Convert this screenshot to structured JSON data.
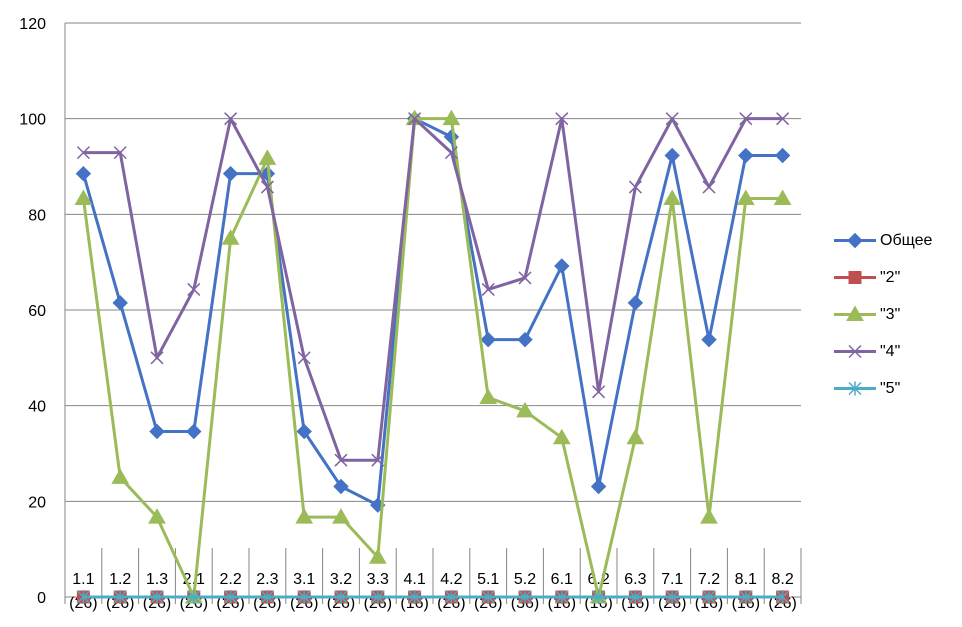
{
  "chart_data": {
    "type": "line",
    "title": "",
    "xlabel": "",
    "ylabel": "",
    "ylim": [
      0,
      120
    ],
    "yticks": [
      0,
      20,
      40,
      60,
      80,
      100,
      120
    ],
    "grid": "horizontal",
    "legend_position": "right",
    "categories": [
      {
        "code": "1.1",
        "n": "(26)"
      },
      {
        "code": "1.2",
        "n": "(26)"
      },
      {
        "code": "1.3",
        "n": "(26)"
      },
      {
        "code": "2.1",
        "n": "(26)"
      },
      {
        "code": "2.2",
        "n": "(26)"
      },
      {
        "code": "2.3",
        "n": "(26)"
      },
      {
        "code": "3.1",
        "n": "(26)"
      },
      {
        "code": "3.2",
        "n": "(26)"
      },
      {
        "code": "3.3",
        "n": "(26)"
      },
      {
        "code": "4.1",
        "n": "(16)"
      },
      {
        "code": "4.2",
        "n": "(26)"
      },
      {
        "code": "5.1",
        "n": "(26)"
      },
      {
        "code": "5.2",
        "n": "(36)"
      },
      {
        "code": "6.1",
        "n": "(16)"
      },
      {
        "code": "6.2",
        "n": "(16)"
      },
      {
        "code": "6.3",
        "n": "(16)"
      },
      {
        "code": "7.1",
        "n": "(26)"
      },
      {
        "code": "7.2",
        "n": "(16)"
      },
      {
        "code": "8.1",
        "n": "(16)"
      },
      {
        "code": "8.2",
        "n": "(26)"
      }
    ],
    "series": [
      {
        "name": "Общее",
        "color": "#4472c4",
        "marker": "diamond",
        "values": [
          88.5,
          61.5,
          34.6,
          34.6,
          88.5,
          88.5,
          34.6,
          23.1,
          19.2,
          100,
          96.2,
          53.8,
          53.8,
          69.2,
          23.1,
          61.5,
          92.3,
          53.8,
          92.3,
          92.3
        ]
      },
      {
        "name": "\"2\"",
        "color": "#c0504d",
        "marker": "square",
        "values": [
          0,
          0,
          0,
          0,
          0,
          0,
          0,
          0,
          0,
          0,
          0,
          0,
          0,
          0,
          0,
          0,
          0,
          0,
          0,
          0
        ]
      },
      {
        "name": "\"3\"",
        "color": "#9bbb59",
        "marker": "triangle",
        "values": [
          83.3,
          25,
          16.7,
          0,
          75,
          91.7,
          16.7,
          16.7,
          8.3,
          100,
          100,
          41.7,
          38.9,
          33.3,
          0,
          33.3,
          83.3,
          16.7,
          83.3,
          83.3
        ]
      },
      {
        "name": "\"4\"",
        "color": "#8064a2",
        "marker": "x",
        "values": [
          92.9,
          92.9,
          50,
          64.3,
          100,
          85.7,
          50,
          28.6,
          28.6,
          100,
          92.9,
          64.3,
          66.7,
          100,
          42.9,
          85.7,
          100,
          85.7,
          100,
          100
        ]
      },
      {
        "name": "\"5\"",
        "color": "#4bacc6",
        "marker": "star",
        "values": [
          0,
          0,
          0,
          0,
          0,
          0,
          0,
          0,
          0,
          0,
          0,
          0,
          0,
          0,
          0,
          0,
          0,
          0,
          0,
          0
        ]
      }
    ]
  }
}
